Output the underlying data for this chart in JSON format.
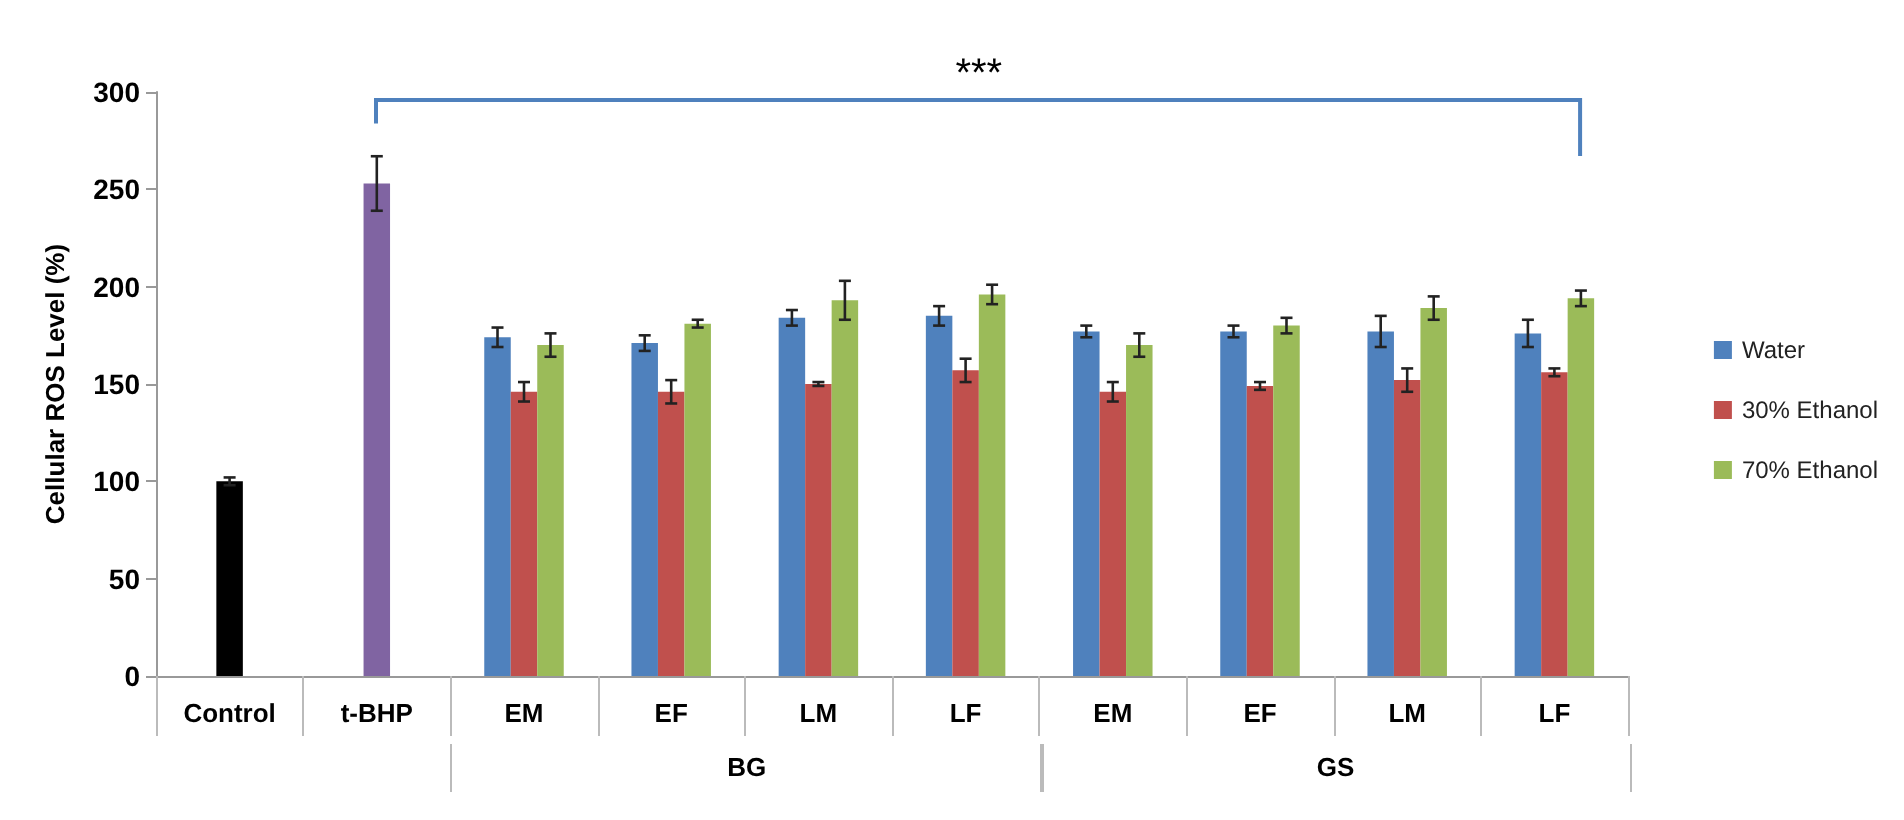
{
  "chart_data": {
    "type": "bar",
    "ylabel": "Cellular ROS Level (%)",
    "categories": [
      "Control",
      "t-BHP",
      "EM",
      "EF",
      "LM",
      "LF",
      "EM",
      "EF",
      "LM",
      "LF"
    ],
    "series": [
      {
        "colors": [
          "#000000",
          "#8064a2",
          null,
          null,
          null,
          null,
          null,
          null,
          null,
          null
        ],
        "values": [
          100,
          253,
          null,
          null,
          null,
          null,
          null,
          null,
          null,
          null
        ],
        "errors": [
          2,
          14,
          null,
          null,
          null,
          null,
          null,
          null,
          null,
          null
        ]
      },
      {
        "name": "Water",
        "color": "#4f81bd",
        "values": [
          null,
          null,
          174,
          171,
          184,
          185,
          177,
          177,
          177,
          176
        ],
        "errors": [
          null,
          null,
          5,
          4,
          4,
          5,
          3,
          3,
          8,
          7
        ]
      },
      {
        "name": "30% Ethanol",
        "color": "#c0504d",
        "values": [
          null,
          null,
          146,
          146,
          150,
          157,
          146,
          149,
          152,
          156
        ],
        "errors": [
          null,
          null,
          5,
          6,
          1,
          6,
          5,
          2,
          6,
          2
        ]
      },
      {
        "name": "70% Ethanol",
        "color": "#9bbb59",
        "values": [
          null,
          null,
          170,
          181,
          193,
          196,
          170,
          180,
          189,
          194
        ],
        "errors": [
          null,
          null,
          6,
          2,
          10,
          5,
          6,
          4,
          6,
          4
        ]
      }
    ],
    "annotations": [
      "***",
      "BG",
      "GS"
    ],
    "ylim": [
      0,
      300
    ],
    "yticks": [
      0,
      50,
      100,
      150,
      200,
      250,
      300
    ],
    "grid": false,
    "legend": "right"
  }
}
